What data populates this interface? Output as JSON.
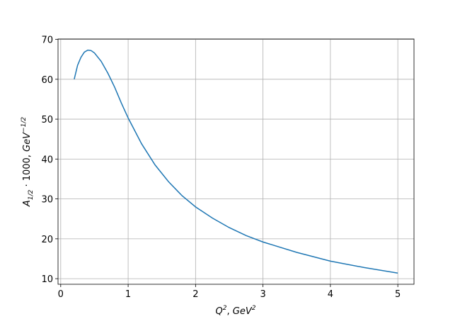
{
  "chart_data": {
    "type": "line",
    "x_label": [
      "Q",
      "2",
      ", ",
      "GeV",
      "2"
    ],
    "y_label": [
      "A",
      "1/2",
      " · 1000, ",
      "GeV",
      "−1/2"
    ],
    "x": [
      0.2,
      0.25,
      0.3,
      0.35,
      0.4,
      0.45,
      0.5,
      0.6,
      0.7,
      0.8,
      0.9,
      1.0,
      1.2,
      1.4,
      1.6,
      1.8,
      2.0,
      2.25,
      2.5,
      2.75,
      3.0,
      3.5,
      4.0,
      4.5,
      5.0
    ],
    "series": [
      {
        "color": "#1f77b4",
        "values": [
          60,
          63.5,
          65.5,
          66.8,
          67.3,
          67.2,
          66.6,
          64.5,
          61.5,
          58,
          54,
          50.3,
          43.8,
          38.5,
          34.3,
          30.8,
          28.0,
          25.2,
          22.8,
          20.8,
          19.2,
          16.6,
          14.4,
          12.8,
          11.4
        ]
      }
    ],
    "xlim": [
      -0.04,
      5.24
    ],
    "ylim": [
      8.6,
      70.1
    ],
    "xticks": [
      0,
      1,
      2,
      3,
      4,
      5
    ],
    "yticks": [
      10,
      20,
      30,
      40,
      50,
      60,
      70
    ],
    "grid": true
  }
}
